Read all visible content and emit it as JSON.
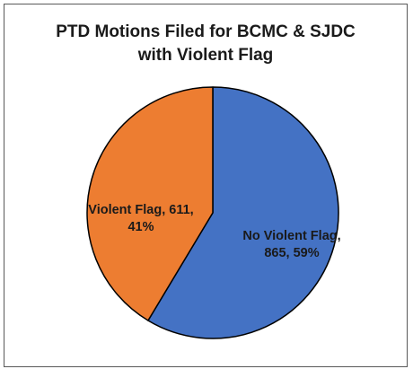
{
  "chart_data": {
    "type": "pie",
    "title_lines": [
      "PTD Motions Filed for BCMC & SJDC",
      "with Violent Flag"
    ],
    "slices": [
      {
        "label": "No Violent Flag",
        "value": 865,
        "percent": "59%",
        "color": "#4472C4",
        "label_lines": [
          "No Violent Flag,",
          "865, 59%"
        ]
      },
      {
        "label": "Violent Flag",
        "value": 611,
        "percent": "41%",
        "color": "#ED7D31",
        "label_lines": [
          "Violent Flag, 611,",
          "41%"
        ]
      }
    ],
    "start_angle_deg": 0,
    "direction": "clockwise",
    "legend": "none"
  }
}
